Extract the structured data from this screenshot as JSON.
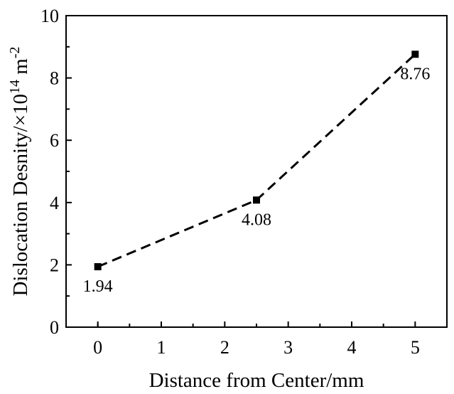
{
  "chart_data": {
    "type": "line",
    "x": [
      0,
      2.5,
      5
    ],
    "y": [
      1.94,
      4.08,
      8.76
    ],
    "point_labels": [
      "1.94",
      "4.08",
      "8.76"
    ],
    "xlabel": "Distance from Center/mm",
    "ylabel": {
      "prefix": "Dislocation Desnity/×10",
      "exp": "14",
      "unit": " m",
      "unit_exp": "-2"
    },
    "xlim": [
      -0.5,
      5.5
    ],
    "ylim": [
      0,
      10
    ],
    "xticks": [
      "0",
      "1",
      "2",
      "3",
      "4",
      "5"
    ],
    "yticks": [
      "0",
      "2",
      "4",
      "6",
      "8",
      "10"
    ],
    "line_style": "dashed",
    "marker": "square",
    "grid": false,
    "legend": "none",
    "color": "#000000"
  }
}
